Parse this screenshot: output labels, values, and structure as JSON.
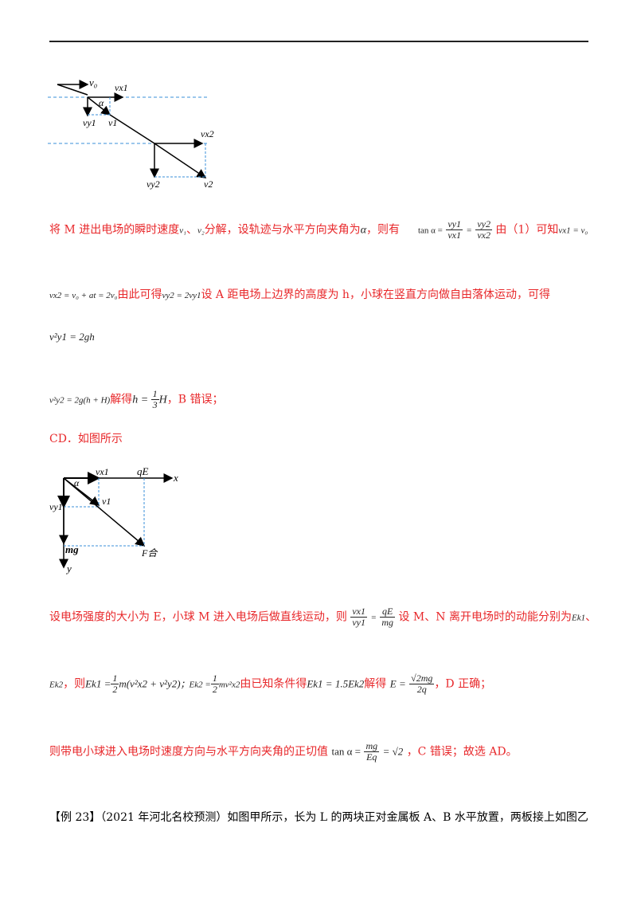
{
  "fig1": {
    "v0": "v₀",
    "vx1": "vx1",
    "alpha": "α",
    "vy1": "vy1",
    "v1": "v1",
    "vx2": "vx2",
    "vy2": "vy2",
    "v2": "v2"
  },
  "fig2": {
    "vx1": "vx1",
    "qE": "qE",
    "x": "x",
    "alpha": "α",
    "vy1": "vy1",
    "v1": "v1",
    "mg": "mg",
    "F": "F合",
    "y": "y"
  },
  "p1": {
    "t1": "将 M 进出电场的瞬时速度",
    "v1": "v₁",
    "sep": "、",
    "v2": "v₂",
    "t2": "分解，设轨迹与水平方向夹角为",
    "alpha": "α",
    "t3": "，则有",
    "tan": "tan α =",
    "f1n": "vy1",
    "f1d": "vx1",
    "eq": "=",
    "f2n": "vy2",
    "f2d": "vx2",
    "t4": "由（1）可知",
    "eq2": "vx1 = v₀"
  },
  "p2": {
    "eq": "vx2 = v₀ + at = 2v₀",
    "t1": "由此可得",
    "eq2": "vy2 = 2vy1",
    "t2": "设 A 距电场上边界的高度为 h，小球在竖直方向做自由落体运动，可得"
  },
  "p3": {
    "eq": "v²y1 = 2gh"
  },
  "p4": {
    "eq": "v²y2 = 2g(h + H)",
    "t1": "解得",
    "eq2": "h = ",
    "fn": "1",
    "fd": "3",
    "eq3": "H",
    "t2": "，B 错误；"
  },
  "p5": {
    "text": "CD．如图所示"
  },
  "p6": {
    "t1": "设电场强度的大小为 E，小球 M 进入电场后做直线运动，则",
    "f1n": "vx1",
    "f1d": "vy1",
    "eq": "=",
    "f2n": "qE",
    "f2d": "mg",
    "t2": "设 M、N 离开电场时的动能分别为",
    "ek": "Ek1",
    "t3": "、"
  },
  "p7": {
    "ek2": "Ek2",
    "t1": "，则",
    "eq1": "Ek1 =",
    "fn": "1",
    "fd": "2",
    "eq1b": "m(v²x2 + v²y2)",
    "sc": "；",
    "eq2": "Ek2 =",
    "eq2b": "mv²x2",
    "t2": "由已知条件得",
    "eq3": "Ek1 = 1.5Ek2",
    "t3": "解得",
    "eq4": "E =",
    "f4n": "√2mg",
    "f4d": "2q",
    "t4": "，D 正确；"
  },
  "p8": {
    "t1": "则带电小球进入电场时速度方向与水平方向夹角的正切值",
    "eq": "tan α =",
    "fn": "mg",
    "fd": "Eq",
    "eq2": "= √2",
    "t2": "，C 错误；故选 AD。"
  },
  "p9": {
    "text": "【例 23】（2021 年河北名校预测）如图甲所示，长为 L 的两块正对金属板 A、B 水平放置，两板接上如图乙"
  }
}
